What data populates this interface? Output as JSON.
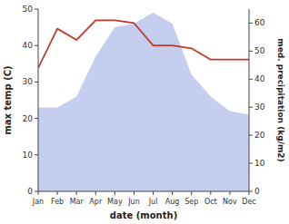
{
  "chart_data": {
    "type": "area",
    "xlabel": "date (month)",
    "ylabel": "max temp (C)",
    "y2label": "med. precipitation (kg/m2)",
    "categories": [
      "Jan",
      "Feb",
      "Mar",
      "Apr",
      "May",
      "Jun",
      "Jul",
      "Aug",
      "Sep",
      "Oct",
      "Nov",
      "Dec"
    ],
    "series": [
      {
        "type": "area",
        "color": "#c6cef0",
        "values": [
          23,
          23,
          26,
          37,
          45,
          46,
          49,
          46,
          32,
          26,
          22,
          21
        ]
      },
      {
        "type": "line",
        "color": "#c0392b",
        "axis": "y2",
        "values": [
          44,
          58,
          54,
          61,
          61,
          60,
          52,
          52,
          51,
          47,
          47,
          47
        ]
      }
    ],
    "ylim": [
      0,
      50
    ],
    "yticks": [
      0,
      10,
      20,
      30,
      40,
      50
    ],
    "y2lim": [
      0,
      65
    ],
    "y2ticks": [
      0,
      10,
      20,
      30,
      40,
      50,
      60
    ],
    "grid": false
  }
}
